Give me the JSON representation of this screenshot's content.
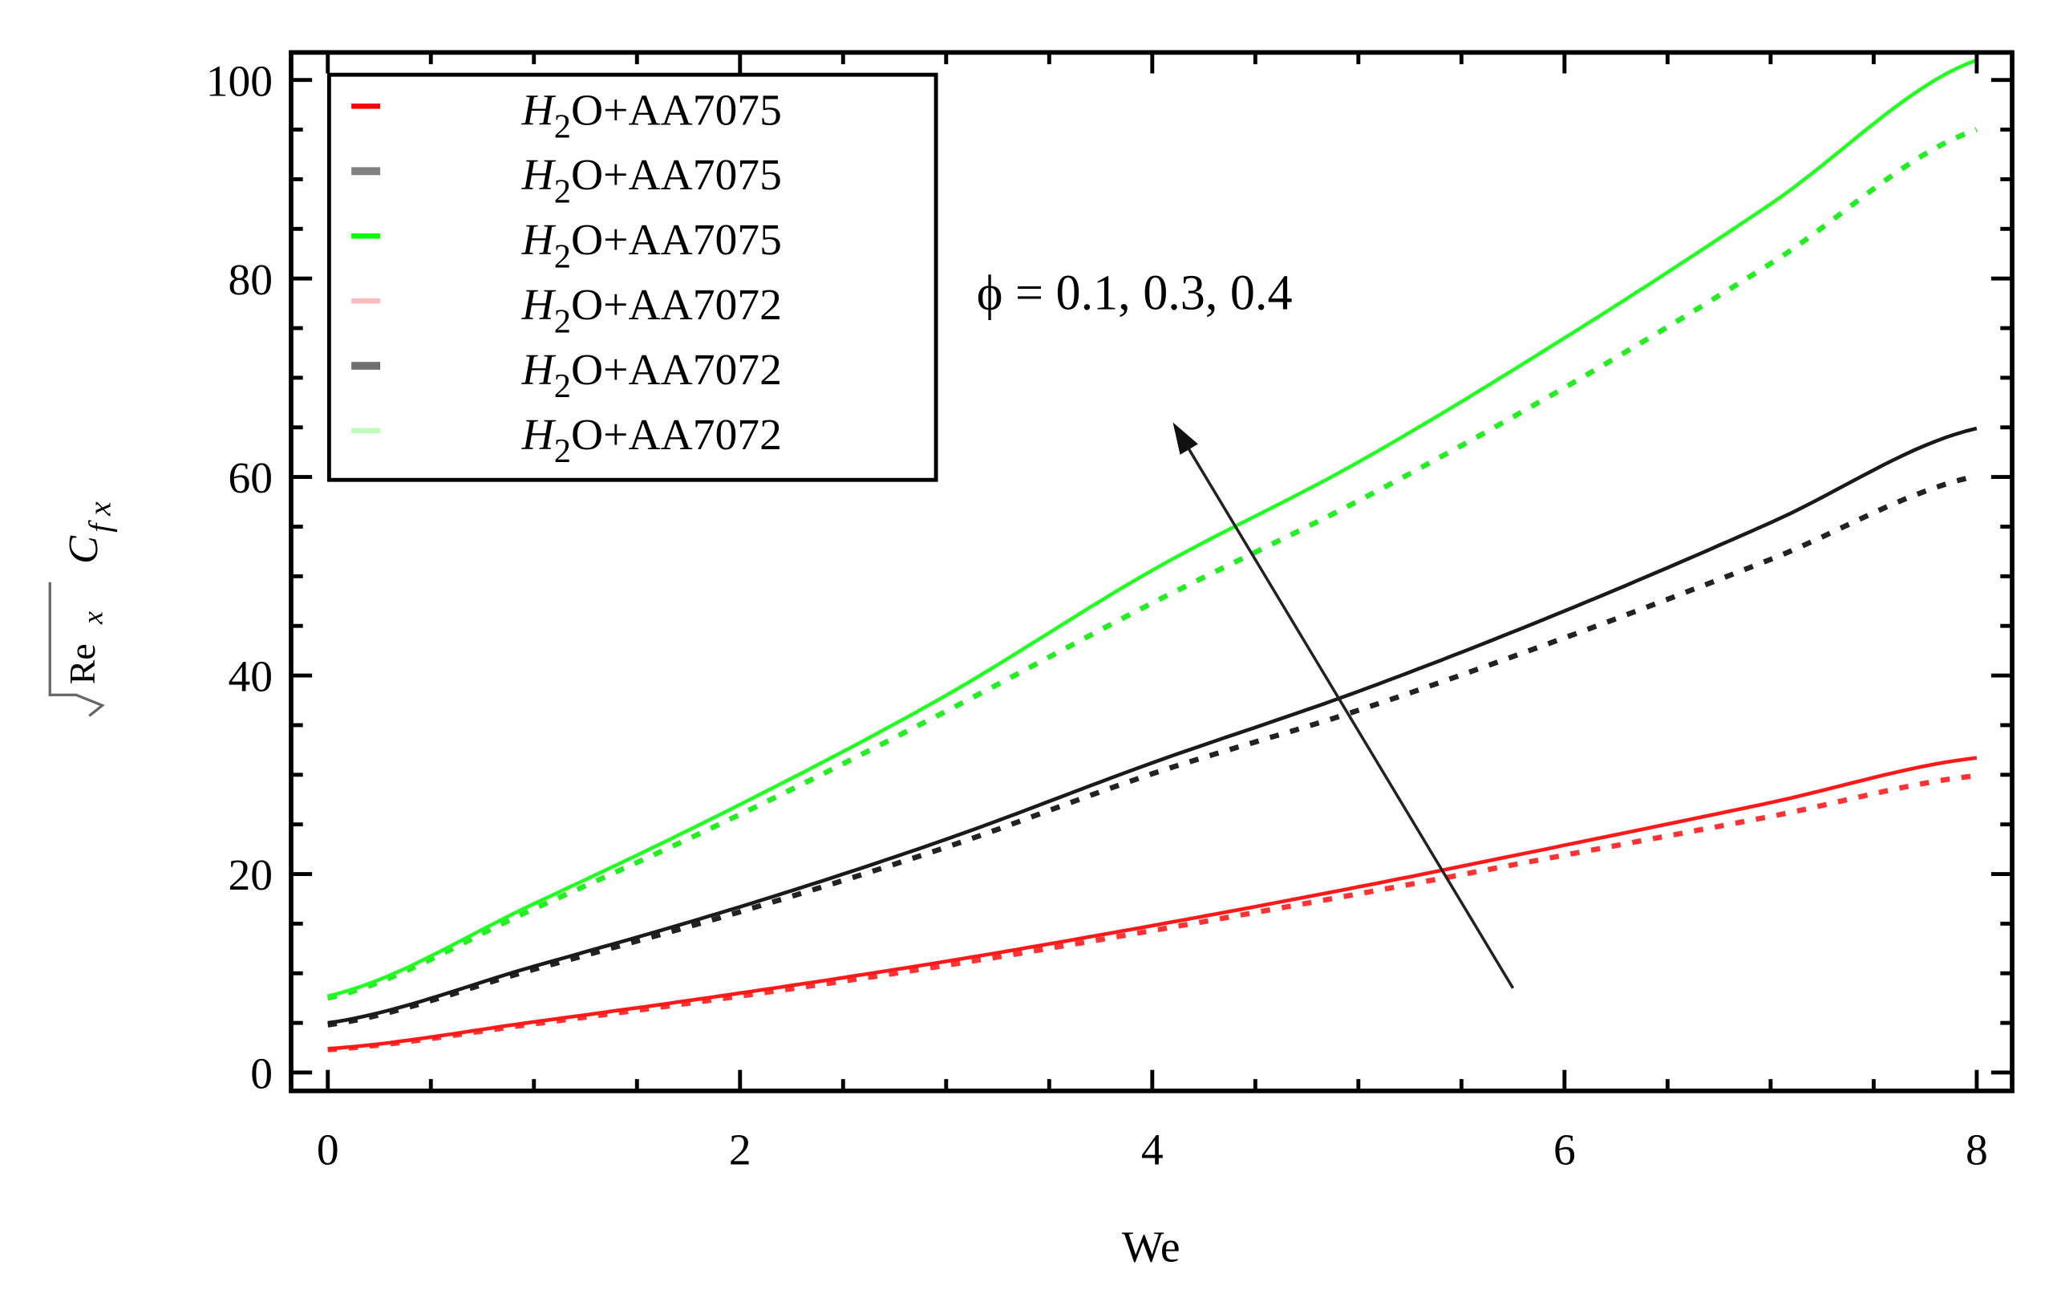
{
  "chart_data": {
    "type": "line",
    "title": "",
    "xlabel": "We",
    "ylabel": "√Re_x C_fx",
    "xlim": [
      0,
      8
    ],
    "ylim": [
      0,
      100
    ],
    "x_ticks": [
      "0",
      "2",
      "4",
      "6",
      "8"
    ],
    "y_ticks": [
      "0",
      "20",
      "40",
      "60",
      "80",
      "100"
    ],
    "grid": false,
    "legend_position": "upper-left",
    "x": [
      0,
      1,
      2,
      3,
      4,
      5,
      6,
      7,
      8
    ],
    "series": [
      {
        "name": "H2O+AA7075",
        "color": "#ff0000",
        "style": "solid",
        "values": [
          2.4,
          5.1,
          8.0,
          11.2,
          14.8,
          18.7,
          22.9,
          27.2,
          31.7
        ]
      },
      {
        "name": "H2O+AA7075",
        "color": "#808080",
        "style": "solid",
        "values": [
          5.0,
          10.7,
          16.7,
          23.5,
          31.2,
          38.4,
          46.5,
          55.4,
          64.9
        ]
      },
      {
        "name": "H2O+AA7075",
        "color": "#00ff00",
        "style": "solid",
        "values": [
          7.7,
          17.0,
          27.0,
          38.0,
          50.6,
          61.5,
          74.0,
          87.5,
          102.0
        ]
      },
      {
        "name": "H2O+AA7072",
        "color": "#ffb6b6",
        "style": "dashed",
        "values": [
          2.3,
          4.9,
          7.7,
          10.8,
          14.3,
          18.0,
          21.9,
          25.8,
          29.9
        ]
      },
      {
        "name": "H2O+AA7072",
        "color": "#555555",
        "style": "dashed",
        "values": [
          4.8,
          10.4,
          16.2,
          22.7,
          30.1,
          36.5,
          43.8,
          51.7,
          60.1
        ]
      },
      {
        "name": "H2O+AA7072",
        "color": "#aaffaa",
        "style": "dashed",
        "values": [
          7.5,
          16.5,
          26.0,
          36.4,
          47.3,
          57.6,
          69.0,
          81.5,
          95.0
        ]
      }
    ],
    "annotations": [
      {
        "text": "φ = 0.1, 0.3, 0.4",
        "arrow_from": [
          5.75,
          8.5
        ],
        "arrow_to": [
          4.1,
          65.5
        ]
      }
    ]
  },
  "labels": {
    "xlabel": "We",
    "ylabel_root": "Re",
    "ylabel_root_sub": "x",
    "ylabel_c": "C",
    "ylabel_c_sub": "f x",
    "annotation": "ϕ = 0.1, 0.3, 0.4",
    "legend": [
      {
        "base": "H",
        "sub": "2",
        "rest": "O+AA7075",
        "color": "#ff0000"
      },
      {
        "base": "H",
        "sub": "2",
        "rest": "O+AA7075",
        "color": "#808080"
      },
      {
        "base": "H",
        "sub": "2",
        "rest": "O+AA7075",
        "color": "#00ff00"
      },
      {
        "base": "H",
        "sub": "2",
        "rest": "O+AA7072",
        "color": "#ffbcbc"
      },
      {
        "base": "H",
        "sub": "2",
        "rest": "O+AA7072",
        "color": "#707070"
      },
      {
        "base": "H",
        "sub": "2",
        "rest": "O+AA7072",
        "color": "#baffba"
      }
    ]
  }
}
